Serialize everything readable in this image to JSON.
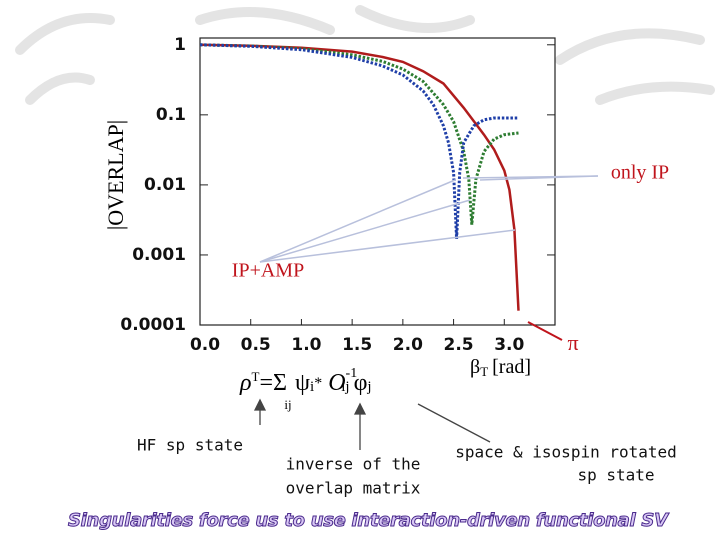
{
  "chart_data": {
    "type": "line",
    "ylabel": "|OVERLAP|",
    "xlabel": {
      "symbol": "β",
      "subscript": "T",
      "unit": "[rad]"
    },
    "log_y": true,
    "xlim": [
      0,
      3.5
    ],
    "ylim": [
      0.0001,
      1.25
    ],
    "xticks": [
      {
        "value": 0,
        "label": "0.0"
      },
      0.5,
      {
        "value": 1,
        "label": "1.0"
      },
      1.5,
      {
        "value": 2,
        "label": "2.0"
      },
      2.5,
      {
        "value": 3,
        "label": "3.0"
      }
    ],
    "yticks": [
      1,
      0.1,
      0.01,
      0.001,
      0.0001
    ],
    "series": [
      {
        "color": "#b01c1c",
        "style": "solid",
        "x": [
          0,
          0.5,
          1.0,
          1.5,
          1.8,
          2.0,
          2.2,
          2.4,
          2.6,
          2.8,
          2.9,
          3.0,
          3.05,
          3.1,
          3.14
        ],
        "values": [
          1,
          0.97,
          0.91,
          0.8,
          0.67,
          0.57,
          0.42,
          0.28,
          0.126,
          0.052,
          0.032,
          0.016,
          0.0085,
          0.0023,
          0.00016
        ]
      },
      {
        "color": "#2e7d32",
        "style": "dotted",
        "x": [
          0,
          0.5,
          1.0,
          1.5,
          1.8,
          2.0,
          2.2,
          2.4,
          2.5,
          2.6,
          2.65,
          2.68,
          2.72,
          2.8,
          2.9,
          3.0,
          3.14
        ],
        "values": [
          1,
          0.96,
          0.88,
          0.72,
          0.58,
          0.45,
          0.3,
          0.14,
          0.08,
          0.03,
          0.012,
          0.0027,
          0.012,
          0.03,
          0.045,
          0.052,
          0.055
        ]
      },
      {
        "color": "#1f3fa8",
        "style": "dotted",
        "x": [
          0,
          0.5,
          1.0,
          1.5,
          1.8,
          2.0,
          2.2,
          2.3,
          2.4,
          2.45,
          2.5,
          2.53,
          2.56,
          2.6,
          2.7,
          2.8,
          2.9,
          3.0,
          3.14
        ],
        "values": [
          1,
          0.95,
          0.85,
          0.66,
          0.5,
          0.37,
          0.22,
          0.14,
          0.07,
          0.04,
          0.015,
          0.0017,
          0.015,
          0.04,
          0.07,
          0.085,
          0.09,
          0.09,
          0.09
        ]
      }
    ],
    "annotations": {
      "only_ip": "only IP",
      "ip_amp": "IP+AMP",
      "pi": "π"
    }
  },
  "formula": {
    "rho": "ρ",
    "rho_sub": "T",
    "eq": "=",
    "sum": "Σ",
    "sum_sub": "ij",
    "psi": "ψ",
    "psi_sub": "i",
    "star": "*",
    "o": "O",
    "o_sub": "ij",
    "o_sup": "-1",
    "phi": "φ",
    "phi_sub": "j"
  },
  "labels": {
    "hf": "HF sp state",
    "inverse": [
      "inverse of the",
      "overlap matrix"
    ],
    "rotated": [
      "space & isospin rotated",
      "sp state"
    ]
  },
  "footer": "Singularities force us to use interaction-driven functional SV"
}
